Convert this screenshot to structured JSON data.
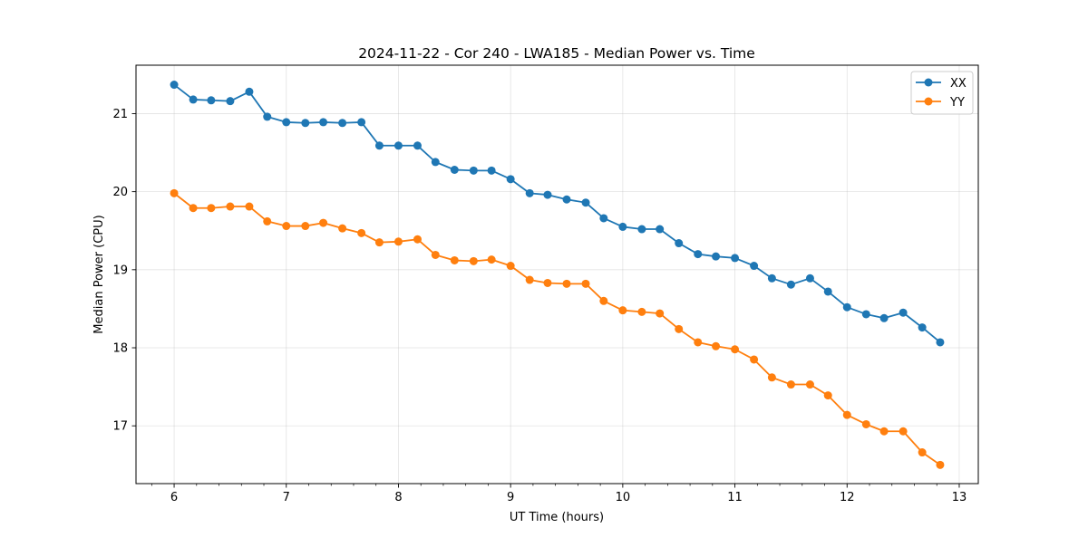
{
  "chart_data": {
    "type": "line",
    "title": "2024-11-22 - Cor 240 - LWA185 - Median Power vs. Time",
    "xlabel": "UT Time (hours)",
    "ylabel": "Median Power (CPU)",
    "xlim": [
      5.66,
      13.17
    ],
    "ylim": [
      16.26,
      21.62
    ],
    "x_ticks": [
      6,
      7,
      8,
      9,
      10,
      11,
      12,
      13
    ],
    "y_ticks": [
      17,
      18,
      19,
      20,
      21
    ],
    "grid": true,
    "legend_position": "top-right",
    "x": [
      6.0,
      6.17,
      6.33,
      6.5,
      6.67,
      6.83,
      7.0,
      7.17,
      7.33,
      7.5,
      7.67,
      7.83,
      8.0,
      8.17,
      8.33,
      8.5,
      8.67,
      8.83,
      9.0,
      9.17,
      9.33,
      9.5,
      9.67,
      9.83,
      10.0,
      10.17,
      10.33,
      10.5,
      10.67,
      10.83,
      11.0,
      11.17,
      11.33,
      11.5,
      11.67,
      11.83,
      12.0,
      12.17,
      12.33,
      12.5,
      12.67,
      12.83
    ],
    "series": [
      {
        "name": "XX",
        "color": "#1f77b4",
        "values": [
          21.37,
          21.18,
          21.17,
          21.16,
          21.28,
          20.96,
          20.89,
          20.88,
          20.89,
          20.88,
          20.89,
          20.59,
          20.59,
          20.59,
          20.38,
          20.28,
          20.27,
          20.27,
          20.16,
          19.98,
          19.96,
          19.9,
          19.86,
          19.66,
          19.55,
          19.52,
          19.52,
          19.34,
          19.2,
          19.17,
          19.15,
          19.05,
          18.89,
          18.81,
          18.89,
          18.72,
          18.52,
          18.43,
          18.38,
          18.45,
          18.26,
          18.07
        ]
      },
      {
        "name": "YY",
        "color": "#ff7f0e",
        "values": [
          19.98,
          19.79,
          19.79,
          19.81,
          19.81,
          19.62,
          19.56,
          19.56,
          19.6,
          19.53,
          19.47,
          19.35,
          19.36,
          19.39,
          19.19,
          19.12,
          19.11,
          19.13,
          19.05,
          18.87,
          18.83,
          18.82,
          18.82,
          18.6,
          18.48,
          18.46,
          18.44,
          18.24,
          18.07,
          18.02,
          17.98,
          17.85,
          17.62,
          17.53,
          17.53,
          17.39,
          17.14,
          17.02,
          16.93,
          16.93,
          16.66,
          16.5
        ]
      }
    ]
  }
}
